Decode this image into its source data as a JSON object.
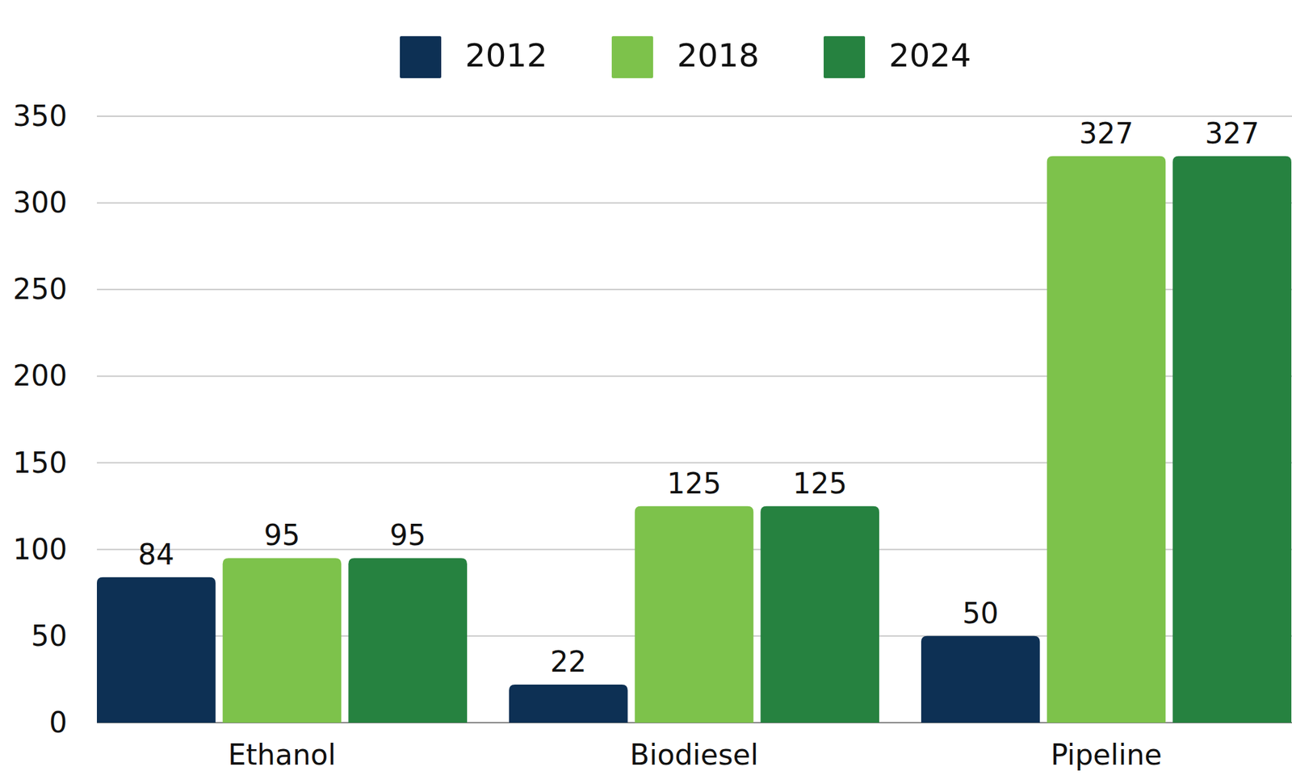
{
  "chart_data": {
    "type": "bar",
    "categories": [
      "Ethanol",
      "Biodiesel",
      "Pipeline"
    ],
    "series": [
      {
        "name": "2012",
        "color": "#0d3054",
        "values": [
          84,
          22,
          50
        ]
      },
      {
        "name": "2018",
        "color": "#7dc24b",
        "values": [
          95,
          125,
          327
        ]
      },
      {
        "name": "2024",
        "color": "#268240",
        "values": [
          95,
          125,
          327
        ]
      }
    ],
    "ylim": [
      0,
      350
    ],
    "yticks": [
      0,
      50,
      100,
      150,
      200,
      250,
      300,
      350
    ],
    "grid": true,
    "data_labels": true,
    "legend": "top"
  }
}
